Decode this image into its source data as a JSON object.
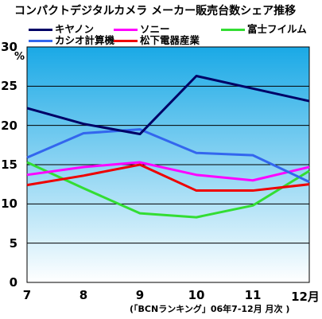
{
  "colors": {
    "canon": "#000066",
    "sony": "#ff00ff",
    "fujifilm": "#33dd33",
    "casio": "#3366ee",
    "panasonic": "#ee0000",
    "grad_top": "#1aa9e6",
    "grad_bottom": "#ffffff"
  },
  "chart_data": {
    "type": "line",
    "title": "コンパクトデジタルカメラ メーカー販売台数シェア推移",
    "ylabel_unit": "%",
    "x_note": "(「BCNランキング」06年7-12月 月次 )",
    "categories": [
      "7",
      "8",
      "9",
      "10",
      "11",
      "12月"
    ],
    "ylim": [
      0,
      30
    ],
    "yticks": [
      "0",
      "5",
      "10",
      "15",
      "20",
      "25",
      "30"
    ],
    "grid": true,
    "legend_position": "top",
    "series": [
      {
        "name": "キヤノン",
        "key": "canon",
        "values": [
          22.2,
          20.2,
          18.9,
          26.3,
          24.7,
          23.1
        ]
      },
      {
        "name": "ソニー",
        "key": "sony",
        "values": [
          13.7,
          14.7,
          15.3,
          13.7,
          13.0,
          14.7
        ]
      },
      {
        "name": "富士フイルム",
        "key": "fujifilm",
        "values": [
          15.3,
          12.0,
          8.8,
          8.3,
          9.8,
          14.2
        ]
      },
      {
        "name": "カシオ計算機",
        "key": "casio",
        "values": [
          15.9,
          19.0,
          19.5,
          16.5,
          16.2,
          12.8
        ]
      },
      {
        "name": "松下電器産業",
        "key": "panasonic",
        "values": [
          12.4,
          13.6,
          15.0,
          11.7,
          11.7,
          12.5
        ]
      }
    ]
  }
}
